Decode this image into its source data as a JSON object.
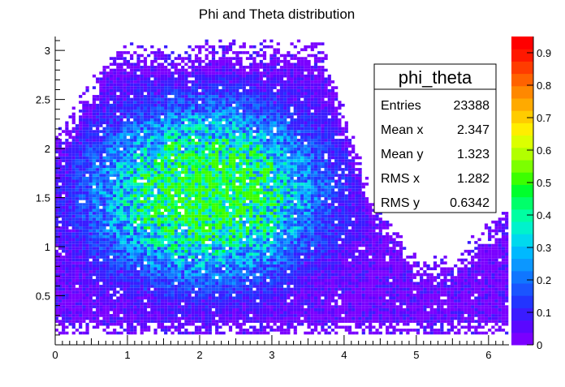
{
  "chart_data": {
    "type": "heatmap",
    "title": "Phi and Theta distribution",
    "xlabel": "",
    "ylabel": "",
    "xlim": [
      0,
      6.283
    ],
    "ylim": [
      0,
      3.1416
    ],
    "x_ticks": [
      "0",
      "1",
      "2",
      "3",
      "4",
      "5",
      "6"
    ],
    "x_tick_values": [
      0,
      1,
      2,
      3,
      4,
      5,
      6
    ],
    "y_ticks": [
      "0.5",
      "1",
      "1.5",
      "2",
      "2.5",
      "3"
    ],
    "y_tick_values": [
      0.5,
      1,
      1.5,
      2,
      2.5,
      3
    ],
    "colorbar": {
      "min": 0,
      "max": 0.9,
      "ticks": [
        "0",
        "0.1",
        "0.2",
        "0.3",
        "0.4",
        "0.5",
        "0.6",
        "0.7",
        "0.8",
        "0.9"
      ],
      "tick_values": [
        0,
        0.1,
        0.2,
        0.3,
        0.4,
        0.5,
        0.6,
        0.7,
        0.8,
        0.9
      ],
      "palette": [
        "#7a00ff",
        "#5a08ff",
        "#3a1cff",
        "#2235ff",
        "#1a55ff",
        "#1076ff",
        "#0c97ff",
        "#00b9ff",
        "#00d9ee",
        "#00f2cc",
        "#00ffa2",
        "#00ff6a",
        "#00ff2c",
        "#3cff00",
        "#7cff00",
        "#b2ff00",
        "#dcff00",
        "#ffee00",
        "#ffcc00",
        "#ffaa00",
        "#ff8800",
        "#ff6200",
        "#ff3c00",
        "#ff1800",
        "#ff0000"
      ]
    },
    "stats_box": {
      "title": "phi_theta",
      "rows": [
        {
          "label": "Entries",
          "value": "23388"
        },
        {
          "label": "Mean x",
          "value": "2.347"
        },
        {
          "label": "Mean y",
          "value": "1.323"
        },
        {
          "label": "RMS x",
          "value": "1.282"
        },
        {
          "label": "RMS y",
          "value": "0.6342"
        }
      ]
    },
    "legend_placement": "top-right",
    "grid": false
  }
}
